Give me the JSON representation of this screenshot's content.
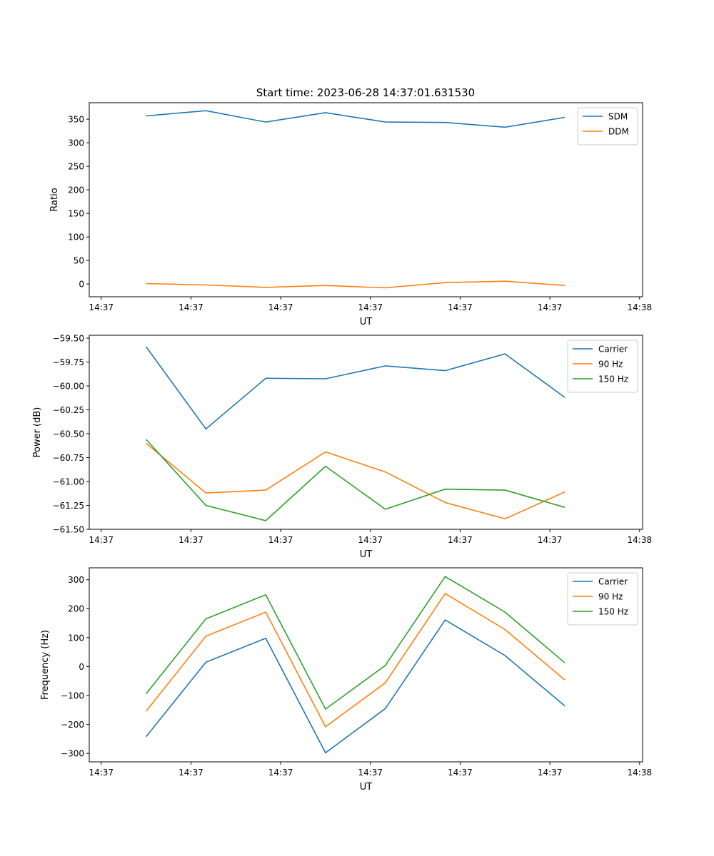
{
  "figure": {
    "title": "Start time: 2023-06-28 14:37:01.631530"
  },
  "chart_data": [
    {
      "type": "line",
      "xlabel": "UT",
      "ylabel": "Ratio",
      "x_ticks": [
        "14:37",
        "14:37",
        "14:37",
        "14:37",
        "14:37",
        "14:37",
        "14:38"
      ],
      "y_ticks": [
        "0",
        "50",
        "100",
        "150",
        "200",
        "250",
        "300",
        "350"
      ],
      "ylim": [
        -27,
        385
      ],
      "grid": false,
      "legend_position": "top-right",
      "series": [
        {
          "name": "SDM",
          "color": "#1f77b4",
          "values": [
            357,
            368,
            344,
            364,
            344,
            343,
            333,
            354
          ]
        },
        {
          "name": "DDM",
          "color": "#ff7f0e",
          "values": [
            1,
            -2,
            -7,
            -3,
            -8,
            3,
            6,
            -3
          ]
        }
      ]
    },
    {
      "type": "line",
      "xlabel": "UT",
      "ylabel": "Power (dB)",
      "x_ticks": [
        "14:37",
        "14:37",
        "14:37",
        "14:37",
        "14:37",
        "14:37",
        "14:38"
      ],
      "y_ticks": [
        "−59.50",
        "−59.75",
        "−60.00",
        "−60.25",
        "−60.50",
        "−60.75",
        "−61.00",
        "−61.25",
        "−61.50"
      ],
      "ylim": [
        -61.5,
        -59.47
      ],
      "grid": false,
      "legend_position": "top-right",
      "series": [
        {
          "name": "Carrier",
          "color": "#1f77b4",
          "values": [
            -59.59,
            -60.45,
            -59.92,
            -59.925,
            -59.79,
            -59.84,
            -59.665,
            -60.12
          ]
        },
        {
          "name": "90 Hz",
          "color": "#ff7f0e",
          "values": [
            -60.6,
            -61.12,
            -61.09,
            -60.69,
            -60.9,
            -61.22,
            -61.39,
            -61.11
          ]
        },
        {
          "name": "150 Hz",
          "color": "#2ca02c",
          "values": [
            -60.56,
            -61.25,
            -61.41,
            -60.84,
            -61.29,
            -61.08,
            -61.09,
            -61.27
          ]
        }
      ]
    },
    {
      "type": "line",
      "xlabel": "UT",
      "ylabel": "Frequency (Hz)",
      "x_ticks": [
        "14:37",
        "14:37",
        "14:37",
        "14:37",
        "14:37",
        "14:37",
        "14:38"
      ],
      "y_ticks": [
        "−300",
        "−200",
        "−100",
        "0",
        "100",
        "200",
        "300"
      ],
      "ylim": [
        -329,
        341
      ],
      "grid": false,
      "legend_position": "top-right",
      "series": [
        {
          "name": "Carrier",
          "color": "#1f77b4",
          "values": [
            -242,
            15,
            98,
            -298,
            -145,
            161,
            38,
            -136
          ]
        },
        {
          "name": "90 Hz",
          "color": "#ff7f0e",
          "values": [
            -154,
            105,
            188,
            -208,
            -56,
            252,
            128,
            -46
          ]
        },
        {
          "name": "150 Hz",
          "color": "#2ca02c",
          "values": [
            -94,
            165,
            248,
            -147,
            4,
            311,
            188,
            13
          ]
        }
      ]
    }
  ]
}
